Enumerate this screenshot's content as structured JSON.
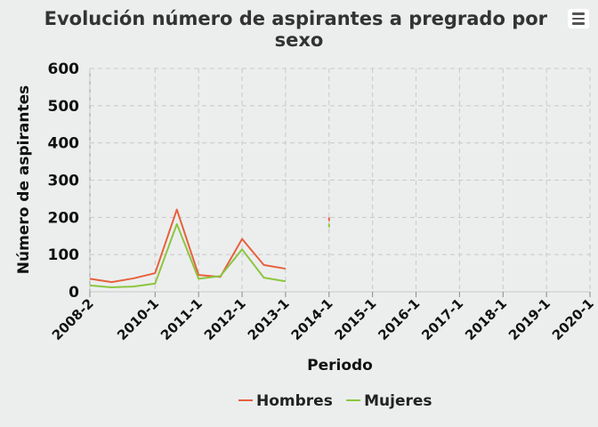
{
  "chart_data": {
    "type": "line",
    "title": "Evolución número de aspirantes a pregrado por sexo",
    "xlabel": "Periodo",
    "ylabel": "Número de aspirantes",
    "ylim": [
      0,
      600
    ],
    "yticks": [
      0,
      100,
      200,
      300,
      400,
      500,
      600
    ],
    "categories": [
      "2008-2",
      "2009-1",
      "2009-2",
      "2010-1",
      "2010-2",
      "2011-1",
      "2011-2",
      "2012-1",
      "2012-2",
      "2013-1",
      "2013-2",
      "2014-1",
      "2014-2",
      "2015-1",
      "2015-2",
      "2016-1",
      "2016-2",
      "2017-1",
      "2017-2",
      "2018-1",
      "2018-2",
      "2019-1",
      "2019-2",
      "2020-1"
    ],
    "tick_labels": [
      "2008-2",
      "2010-1",
      "2011-1",
      "2012-1",
      "2013-1",
      "2014-1",
      "2015-1",
      "2016-1",
      "2017-1",
      "2018-1",
      "2019-1",
      "2020-1"
    ],
    "grid": true,
    "legend_position": "bottom-center",
    "series": [
      {
        "name": "Hombres",
        "color": "#e8603c",
        "values": [
          35,
          26,
          36,
          50,
          221,
          45,
          40,
          142,
          72,
          62,
          null,
          195,
          null,
          null,
          null,
          null,
          null,
          null,
          null,
          null,
          null,
          null,
          null,
          null
        ]
      },
      {
        "name": "Mujeres",
        "color": "#8cc63f",
        "values": [
          17,
          12,
          14,
          22,
          182,
          35,
          42,
          114,
          38,
          28,
          null,
          178,
          null,
          null,
          null,
          null,
          null,
          null,
          null,
          null,
          null,
          null,
          null,
          null
        ]
      }
    ]
  },
  "menu": {
    "icon": "hamburger-menu-icon"
  }
}
